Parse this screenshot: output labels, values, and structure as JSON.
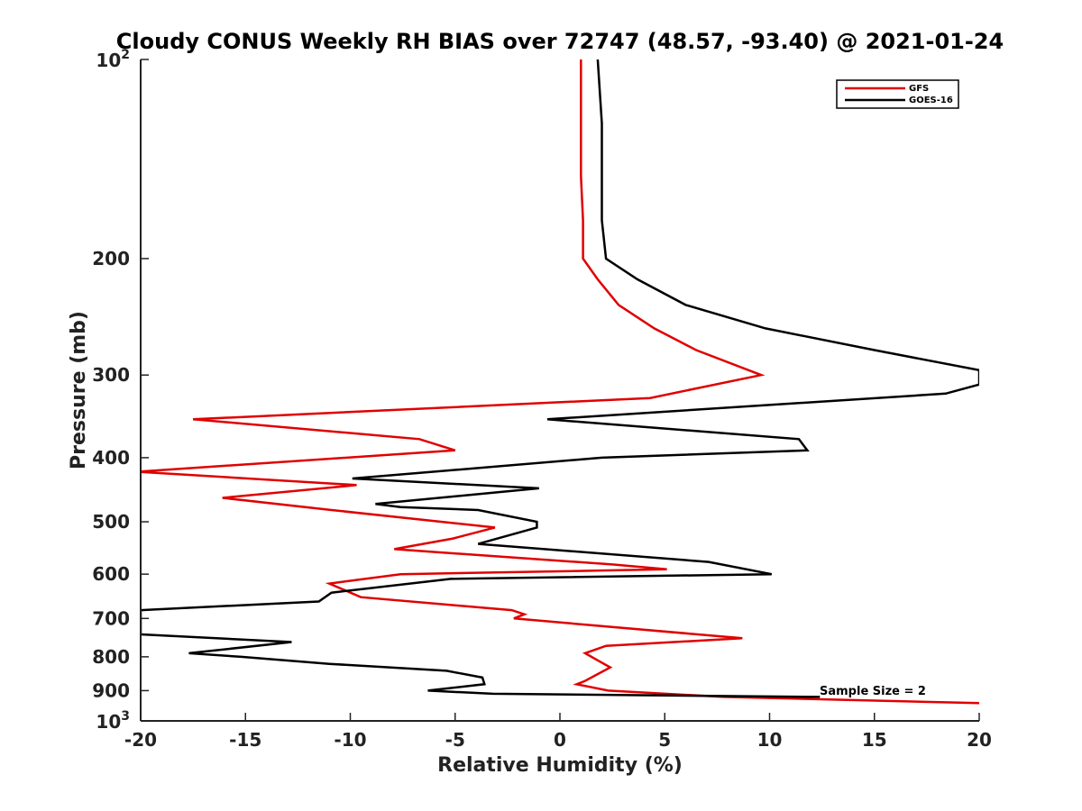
{
  "chart_data": {
    "type": "line",
    "title": "Cloudy CONUS Weekly RH BIAS over 72747 (48.57, -93.40) @ 2021-01-24",
    "xlabel": "Relative Humidity (%)",
    "ylabel": "Pressure (mb)",
    "xlim": [
      -20,
      20
    ],
    "ylim": [
      100,
      1000
    ],
    "yscale": "log",
    "y_reversed": true,
    "xticks": [
      -20,
      -15,
      -10,
      -5,
      0,
      5,
      10,
      15,
      20
    ],
    "xtick_labels": [
      "-20",
      "-15",
      "-10",
      "-5",
      "0",
      "5",
      "10",
      "15",
      "20"
    ],
    "yticks": [
      200,
      300,
      400,
      500,
      600,
      700,
      800,
      900
    ],
    "ytick_labels": [
      "200",
      "300",
      "400",
      "500",
      "600",
      "700",
      "800",
      "900"
    ],
    "ytick_top": {
      "value": 100,
      "base": "10",
      "exp": "2"
    },
    "ytick_bottom": {
      "value": 1000,
      "base": "10",
      "exp": "3"
    },
    "legend_position": "top-right",
    "grid": false,
    "annotation": "Sample Size = 2",
    "series": [
      {
        "name": "GFS",
        "color": "#e00000",
        "points": [
          [
            1.0,
            100
          ],
          [
            1.0,
            125
          ],
          [
            1.0,
            150
          ],
          [
            1.1,
            175
          ],
          [
            1.1,
            200
          ],
          [
            1.8,
            215
          ],
          [
            2.8,
            235
          ],
          [
            4.5,
            255
          ],
          [
            6.5,
            275
          ],
          [
            9.6,
            300
          ],
          [
            4.3,
            325
          ],
          [
            -17.5,
            350
          ],
          [
            -6.7,
            375
          ],
          [
            -5.0,
            390
          ],
          [
            -20.2,
            420
          ],
          [
            -9.7,
            440
          ],
          [
            -16.1,
            460
          ],
          [
            -10.9,
            480
          ],
          [
            -3.1,
            510
          ],
          [
            -5.1,
            530
          ],
          [
            -7.9,
            550
          ],
          [
            2.5,
            580
          ],
          [
            5.1,
            590
          ],
          [
            -7.6,
            600
          ],
          [
            -11.0,
            620
          ],
          [
            -9.5,
            650
          ],
          [
            -2.3,
            680
          ],
          [
            -1.7,
            690
          ],
          [
            -2.2,
            700
          ],
          [
            8.7,
            750
          ],
          [
            2.2,
            770
          ],
          [
            1.2,
            790
          ],
          [
            1.8,
            810
          ],
          [
            2.4,
            830
          ],
          [
            1.2,
            870
          ],
          [
            0.8,
            880
          ],
          [
            2.3,
            900
          ],
          [
            7.8,
            920
          ],
          [
            20.0,
            940
          ]
        ]
      },
      {
        "name": "GOES-16",
        "color": "#000000",
        "points": [
          [
            1.8,
            100
          ],
          [
            2.0,
            125
          ],
          [
            2.0,
            150
          ],
          [
            2.0,
            175
          ],
          [
            2.2,
            200
          ],
          [
            3.7,
            215
          ],
          [
            6.0,
            235
          ],
          [
            9.8,
            255
          ],
          [
            15.0,
            275
          ],
          [
            20.0,
            295
          ],
          [
            20.0,
            310
          ],
          [
            18.4,
            320
          ],
          [
            -0.6,
            350
          ],
          [
            11.4,
            375
          ],
          [
            11.8,
            390
          ],
          [
            2.0,
            400
          ],
          [
            -9.9,
            430
          ],
          [
            -1.0,
            445
          ],
          [
            -8.8,
            470
          ],
          [
            -7.6,
            475
          ],
          [
            -3.9,
            480
          ],
          [
            -1.1,
            500
          ],
          [
            -1.1,
            510
          ],
          [
            -3.9,
            540
          ],
          [
            7.1,
            575
          ],
          [
            10.1,
            600
          ],
          [
            -5.2,
            610
          ],
          [
            -10.9,
            640
          ],
          [
            -11.5,
            660
          ],
          [
            -20.0,
            680
          ],
          [
            -20.0,
            740
          ],
          [
            -12.8,
            760
          ],
          [
            -17.7,
            790
          ],
          [
            -15.2,
            800
          ],
          [
            -11.0,
            820
          ],
          [
            -5.4,
            840
          ],
          [
            -3.7,
            860
          ],
          [
            -3.6,
            880
          ],
          [
            -6.3,
            900
          ],
          [
            -3.2,
            910
          ],
          [
            12.4,
            920
          ]
        ]
      }
    ]
  }
}
